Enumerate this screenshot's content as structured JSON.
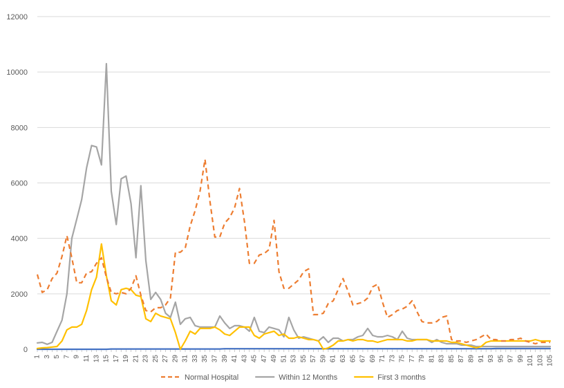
{
  "chart_data": {
    "type": "line",
    "title": "",
    "xlabel": "",
    "ylabel": "",
    "ylim": [
      0,
      12000
    ],
    "yticks": [
      0,
      2000,
      4000,
      6000,
      8000,
      10000,
      12000
    ],
    "ytick_labels": [
      "0",
      "2000",
      "4000",
      "6000",
      "8000",
      "10000",
      "12000"
    ],
    "xticks": [
      1,
      3,
      5,
      7,
      9,
      11,
      13,
      15,
      17,
      19,
      21,
      23,
      25,
      27,
      29,
      31,
      33,
      35,
      37,
      39,
      41,
      43,
      45,
      47,
      49,
      51,
      53,
      55,
      57,
      59,
      61,
      63,
      65,
      67,
      69,
      71,
      73,
      75,
      77,
      79,
      81,
      83,
      85,
      87,
      89,
      91,
      93,
      95,
      97,
      99,
      101,
      103,
      105
    ],
    "xtick_labels": [
      "1",
      "3",
      "5",
      "7",
      "9",
      "11",
      "13",
      "15",
      "17",
      "19",
      "21",
      "23",
      "25",
      "27",
      "29",
      "31",
      "33",
      "35",
      "37",
      "39",
      "41",
      "43",
      "45",
      "47",
      "49",
      "51",
      "53",
      "55",
      "57",
      "59",
      "61",
      "63",
      "65",
      "67",
      "69",
      "71",
      "73",
      "75",
      "77",
      "79",
      "81",
      "83",
      "85",
      "87",
      "89",
      "91",
      "93",
      "95",
      "97",
      "99",
      "101",
      "103",
      "105"
    ],
    "xlim": [
      1,
      105
    ],
    "grid": "horizontal",
    "legend_position": "bottom",
    "series": [
      {
        "name": "Normal Hospital",
        "color": "#ED7D31",
        "style": "dashed",
        "x": [
          1,
          2,
          3,
          4,
          5,
          6,
          7,
          8,
          9,
          10,
          11,
          12,
          13,
          14,
          15,
          16,
          17,
          18,
          19,
          20,
          21,
          22,
          23,
          24,
          25,
          26,
          27,
          28,
          29,
          30,
          31,
          32,
          33,
          34,
          35,
          36,
          37,
          38,
          39,
          40,
          41,
          42,
          43,
          44,
          45,
          46,
          47,
          48,
          49,
          50,
          51,
          52,
          53,
          54,
          55,
          56,
          57,
          58,
          59,
          60,
          61,
          62,
          63,
          64,
          65,
          66,
          67,
          68,
          69,
          70,
          71,
          72,
          73,
          74,
          75,
          76,
          77,
          78,
          79,
          80,
          81,
          82,
          83,
          84,
          85,
          86,
          87,
          88,
          89,
          90,
          91,
          92,
          93,
          94,
          95,
          96,
          97,
          98,
          99,
          100,
          101,
          102,
          103,
          104,
          105
        ],
        "values": [
          2700,
          2050,
          2150,
          2550,
          2750,
          3350,
          4100,
          3300,
          2400,
          2400,
          2750,
          2800,
          3100,
          3300,
          2600,
          2050,
          2000,
          2050,
          2000,
          2200,
          2650,
          1950,
          1400,
          1350,
          1500,
          1500,
          1600,
          1850,
          3500,
          3500,
          3650,
          4450,
          5000,
          5700,
          6850,
          5350,
          4050,
          4050,
          4550,
          4750,
          5100,
          5800,
          4600,
          3100,
          3100,
          3400,
          3450,
          3600,
          4650,
          2800,
          2200,
          2200,
          2350,
          2500,
          2800,
          2900,
          1250,
          1250,
          1300,
          1650,
          1750,
          2150,
          2550,
          2100,
          1600,
          1650,
          1700,
          1850,
          2250,
          2350,
          1700,
          1150,
          1250,
          1400,
          1450,
          1550,
          1750,
          1350,
          1000,
          950,
          950,
          1000,
          1150,
          1200,
          350,
          300,
          300,
          250,
          300,
          350,
          450,
          550,
          350,
          350,
          300,
          300,
          350,
          350,
          400,
          300,
          250,
          200,
          250,
          250,
          250
        ]
      },
      {
        "name": "Within 12 Months",
        "color": "#A5A5A5",
        "style": "solid",
        "x": [
          1,
          2,
          3,
          4,
          5,
          6,
          7,
          8,
          9,
          10,
          11,
          12,
          13,
          14,
          15,
          16,
          17,
          18,
          19,
          20,
          21,
          22,
          23,
          24,
          25,
          26,
          27,
          28,
          29,
          30,
          31,
          32,
          33,
          34,
          35,
          36,
          37,
          38,
          39,
          40,
          41,
          42,
          43,
          44,
          45,
          46,
          47,
          48,
          49,
          50,
          51,
          52,
          53,
          54,
          55,
          56,
          57,
          58,
          59,
          60,
          61,
          62,
          63,
          64,
          65,
          66,
          67,
          68,
          69,
          70,
          71,
          72,
          73,
          74,
          75,
          76,
          77,
          78,
          79,
          80,
          81,
          82,
          83,
          84,
          85,
          86,
          87,
          88,
          89,
          90,
          91,
          92,
          93,
          94,
          95,
          96,
          97,
          98,
          99,
          100,
          101,
          102,
          103,
          104,
          105
        ],
        "values": [
          230,
          250,
          180,
          250,
          650,
          1050,
          2000,
          4000,
          4700,
          5400,
          6550,
          7350,
          7300,
          6650,
          10300,
          5700,
          4500,
          6150,
          6250,
          5250,
          3300,
          5900,
          3200,
          1800,
          2050,
          1800,
          1300,
          1150,
          1700,
          900,
          1100,
          1150,
          850,
          800,
          800,
          800,
          800,
          1200,
          950,
          750,
          850,
          850,
          800,
          650,
          1150,
          650,
          600,
          800,
          750,
          700,
          450,
          1150,
          700,
          400,
          450,
          400,
          350,
          300,
          450,
          250,
          400,
          400,
          300,
          350,
          350,
          450,
          500,
          750,
          500,
          450,
          450,
          500,
          450,
          350,
          650,
          400,
          350,
          350,
          350,
          350,
          250,
          350,
          250,
          200,
          200,
          200,
          150,
          150,
          150,
          100,
          100,
          100,
          100,
          100,
          100,
          100,
          100,
          100,
          100,
          100,
          100,
          100,
          100,
          100,
          100
        ]
      },
      {
        "name": "First 3 months",
        "color": "#FFC000",
        "style": "solid",
        "x": [
          1,
          2,
          3,
          4,
          5,
          6,
          7,
          8,
          9,
          10,
          11,
          12,
          13,
          14,
          15,
          16,
          17,
          18,
          19,
          20,
          21,
          22,
          23,
          24,
          25,
          26,
          27,
          28,
          29,
          30,
          31,
          32,
          33,
          34,
          35,
          36,
          37,
          38,
          39,
          40,
          41,
          42,
          43,
          44,
          45,
          46,
          47,
          48,
          49,
          50,
          51,
          52,
          53,
          54,
          55,
          56,
          57,
          58,
          59,
          60,
          61,
          62,
          63,
          64,
          65,
          66,
          67,
          68,
          69,
          70,
          71,
          72,
          73,
          74,
          75,
          76,
          77,
          78,
          79,
          80,
          81,
          82,
          83,
          84,
          85,
          86,
          87,
          88,
          89,
          90,
          91,
          92,
          93,
          94,
          95,
          96,
          97,
          98,
          99,
          100,
          101,
          102,
          103,
          104,
          105
        ],
        "values": [
          30,
          50,
          60,
          80,
          100,
          300,
          700,
          800,
          800,
          900,
          1400,
          2150,
          2600,
          3800,
          2650,
          1750,
          1600,
          2150,
          2200,
          2150,
          1950,
          1900,
          1100,
          1000,
          1300,
          1200,
          1150,
          1100,
          600,
          0,
          300,
          650,
          550,
          750,
          750,
          750,
          800,
          700,
          550,
          500,
          650,
          800,
          800,
          800,
          500,
          400,
          550,
          600,
          650,
          500,
          550,
          400,
          400,
          450,
          400,
          350,
          350,
          300,
          0,
          50,
          150,
          300,
          300,
          350,
          300,
          350,
          350,
          300,
          300,
          250,
          300,
          350,
          350,
          350,
          350,
          300,
          300,
          350,
          350,
          350,
          300,
          300,
          300,
          300,
          250,
          250,
          200,
          150,
          100,
          50,
          100,
          250,
          300,
          300,
          300,
          300,
          300,
          300,
          300,
          300,
          300,
          350,
          300,
          300,
          300
        ]
      },
      {
        "name": "",
        "color": "#4472C4",
        "style": "solid",
        "x": [
          1,
          2,
          3,
          4,
          5,
          6,
          7,
          8,
          9,
          10,
          11,
          12,
          13,
          14,
          15,
          16,
          17,
          18,
          19,
          20,
          21,
          22,
          23,
          24,
          25,
          26,
          27,
          28,
          29,
          30,
          31,
          32,
          33,
          34,
          35,
          36,
          37,
          38,
          39,
          40,
          41,
          42,
          43,
          44,
          45,
          46,
          47,
          48,
          49,
          50,
          51,
          52,
          53,
          54,
          55,
          56,
          57,
          58,
          59,
          60,
          61,
          62,
          63,
          64,
          65,
          66,
          67,
          68,
          69,
          70,
          71,
          72,
          73,
          74,
          75,
          76,
          77,
          78,
          79,
          80,
          81,
          82,
          83,
          84,
          85,
          86,
          87,
          88,
          89,
          90,
          91,
          92,
          93,
          94,
          95,
          96,
          97,
          98,
          99,
          100,
          101,
          102,
          103,
          104,
          105
        ],
        "values": [
          0,
          0,
          0,
          0,
          0,
          0,
          0,
          0,
          0,
          0,
          0,
          0,
          0,
          0,
          0,
          10,
          10,
          10,
          10,
          10,
          10,
          10,
          10,
          10,
          10,
          10,
          10,
          10,
          10,
          10,
          10,
          10,
          10,
          10,
          10,
          10,
          10,
          10,
          20,
          20,
          20,
          20,
          20,
          20,
          20,
          20,
          20,
          20,
          20,
          20,
          20,
          20,
          20,
          20,
          20,
          20,
          20,
          20,
          20,
          20,
          20,
          20,
          20,
          20,
          20,
          20,
          20,
          20,
          20,
          20,
          20,
          20,
          20,
          20,
          20,
          20,
          20,
          20,
          20,
          20,
          20,
          20,
          20,
          20,
          20,
          20,
          20,
          20,
          20,
          20,
          20,
          20,
          20,
          30,
          30,
          30,
          30,
          30,
          30,
          30,
          30,
          30,
          30,
          30,
          30
        ]
      }
    ]
  }
}
